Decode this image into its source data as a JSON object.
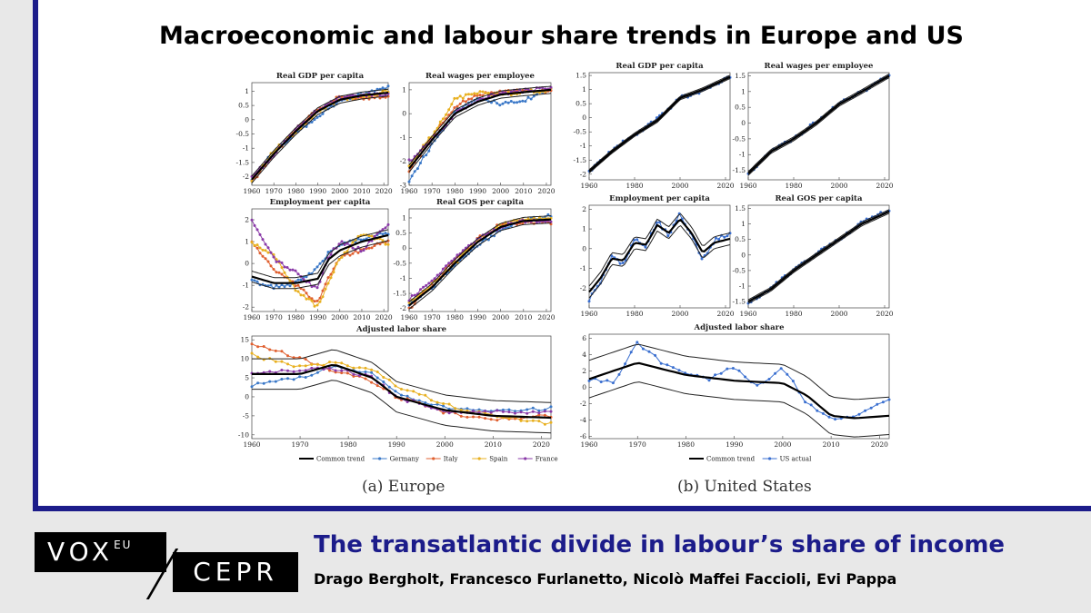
{
  "header": {
    "title": "Macroeconomic and labour share trends in Europe and US"
  },
  "captions": {
    "europe": "(a) Europe",
    "us": "(b) United States"
  },
  "footer": {
    "brand_vox": "VOX",
    "brand_eu": "EU",
    "brand_cepr": "CEPR",
    "title": "The transatlantic divide in labour’s share of income",
    "authors": "Drago Bergholt, Francesco Furlanetto, Nicolò Maffei Faccioli, Evi Pappa"
  },
  "colors": {
    "accent": "#1c1c8a",
    "germany": "#3a78c8",
    "italy": "#e06030",
    "spain": "#e8b020",
    "france": "#8a3aa8",
    "us": "#3a6fd0"
  },
  "chart_data": [
    {
      "id": "eu-gdp",
      "type": "line",
      "title": "Real GDP per capita",
      "xlim": [
        1960,
        2022
      ],
      "ylim": [
        -2.3,
        1.3
      ],
      "xticks": [
        1960,
        1970,
        1980,
        1990,
        2000,
        2010,
        2020
      ],
      "yticks": [
        -2,
        -1.5,
        -1,
        -0.5,
        0,
        0.5,
        1
      ],
      "trend_x": [
        1960,
        1970,
        1980,
        1990,
        2000,
        2010,
        2022
      ],
      "trend": [
        -2.1,
        -1.2,
        -0.4,
        0.3,
        0.7,
        0.85,
        0.95
      ],
      "band": 0.12,
      "series": [
        {
          "name": "Germany",
          "color": "germany",
          "x": [
            1960,
            1970,
            1980,
            1990,
            2000,
            2010,
            2022
          ],
          "y": [
            -2.05,
            -1.15,
            -0.5,
            0.1,
            0.65,
            0.9,
            1.15
          ]
        },
        {
          "name": "Italy",
          "color": "italy",
          "x": [
            1960,
            1970,
            1980,
            1990,
            2000,
            2010,
            2022
          ],
          "y": [
            -2.2,
            -1.2,
            -0.3,
            0.35,
            0.8,
            0.75,
            0.85
          ]
        },
        {
          "name": "Spain",
          "color": "spain",
          "x": [
            1960,
            1970,
            1980,
            1990,
            2000,
            2010,
            2022
          ],
          "y": [
            -2.1,
            -1.1,
            -0.45,
            0.25,
            0.75,
            0.8,
            1.0
          ]
        },
        {
          "name": "France",
          "color": "france",
          "x": [
            1960,
            1970,
            1980,
            1990,
            2000,
            2010,
            2022
          ],
          "y": [
            -2.0,
            -1.25,
            -0.35,
            0.35,
            0.75,
            0.85,
            0.9
          ]
        }
      ]
    },
    {
      "id": "eu-wages",
      "type": "line",
      "title": "Real wages per employee",
      "xlim": [
        1960,
        2022
      ],
      "ylim": [
        -3,
        1.3
      ],
      "xticks": [
        1960,
        1970,
        1980,
        1990,
        2000,
        2010,
        2020
      ],
      "yticks": [
        -3,
        -2,
        -1,
        0,
        1
      ],
      "trend_x": [
        1960,
        1970,
        1980,
        1990,
        2000,
        2010,
        2022
      ],
      "trend": [
        -2.3,
        -1.1,
        0.0,
        0.5,
        0.8,
        0.9,
        1.0
      ],
      "band": 0.15,
      "series": [
        {
          "name": "Germany",
          "color": "germany",
          "x": [
            1960,
            1970,
            1980,
            1990,
            2000,
            2010,
            2022
          ],
          "y": [
            -2.8,
            -1.3,
            0.1,
            0.7,
            0.4,
            0.5,
            1.1
          ]
        },
        {
          "name": "Italy",
          "color": "italy",
          "x": [
            1960,
            1970,
            1980,
            1990,
            2000,
            2010,
            2022
          ],
          "y": [
            -2.4,
            -1.0,
            0.3,
            0.8,
            0.9,
            0.95,
            0.9
          ]
        },
        {
          "name": "Spain",
          "color": "spain",
          "x": [
            1960,
            1970,
            1980,
            1990,
            2000,
            2010,
            2022
          ],
          "y": [
            -2.2,
            -0.9,
            0.6,
            0.9,
            0.8,
            0.9,
            1.0
          ]
        },
        {
          "name": "France",
          "color": "france",
          "x": [
            1960,
            1970,
            1980,
            1990,
            2000,
            2010,
            2022
          ],
          "y": [
            -2.0,
            -1.1,
            0.0,
            0.6,
            0.85,
            0.95,
            1.1
          ]
        }
      ]
    },
    {
      "id": "eu-emp",
      "type": "line",
      "title": "Employment per capita",
      "xlim": [
        1960,
        2022
      ],
      "ylim": [
        -2.2,
        2.5
      ],
      "xticks": [
        1960,
        1970,
        1980,
        1990,
        2000,
        2010,
        2020
      ],
      "yticks": [
        -2,
        -1,
        0,
        1,
        2
      ],
      "trend_x": [
        1960,
        1970,
        1980,
        1990,
        1995,
        2000,
        2010,
        2022
      ],
      "trend": [
        -0.6,
        -0.9,
        -0.9,
        -0.7,
        0.2,
        0.6,
        1.0,
        1.3
      ],
      "band": 0.25,
      "series": [
        {
          "name": "Germany",
          "color": "germany",
          "x": [
            1960,
            1970,
            1980,
            1990,
            1995,
            2000,
            2010,
            2022
          ],
          "y": [
            -0.8,
            -1.1,
            -0.9,
            -0.2,
            0.5,
            0.9,
            1.1,
            1.4
          ]
        },
        {
          "name": "Italy",
          "color": "italy",
          "x": [
            1960,
            1970,
            1980,
            1990,
            1995,
            2000,
            2010,
            2022
          ],
          "y": [
            1.0,
            -0.3,
            -1.0,
            -1.8,
            -0.6,
            0.3,
            0.6,
            1.0
          ]
        },
        {
          "name": "Spain",
          "color": "spain",
          "x": [
            1960,
            1970,
            1980,
            1990,
            1995,
            2000,
            2010,
            2022
          ],
          "y": [
            0.9,
            0.4,
            -1.2,
            -2.0,
            -0.8,
            0.2,
            1.4,
            0.9
          ]
        },
        {
          "name": "France",
          "color": "france",
          "x": [
            1960,
            1970,
            1980,
            1990,
            1995,
            2000,
            2010,
            2022
          ],
          "y": [
            2.0,
            0.2,
            -0.4,
            -1.2,
            0.3,
            1.0,
            0.6,
            1.8
          ]
        }
      ]
    },
    {
      "id": "eu-gos",
      "type": "line",
      "title": "Real GOS per capita",
      "xlim": [
        1960,
        2022
      ],
      "ylim": [
        -2.1,
        1.3
      ],
      "xticks": [
        1960,
        1970,
        1980,
        1990,
        2000,
        2010,
        2020
      ],
      "yticks": [
        -2,
        -1.5,
        -1,
        -0.5,
        0,
        0.5,
        1
      ],
      "trend_x": [
        1960,
        1970,
        1980,
        1990,
        2000,
        2010,
        2022
      ],
      "trend": [
        -1.9,
        -1.3,
        -0.5,
        0.2,
        0.7,
        0.9,
        0.95
      ],
      "band": 0.12,
      "series": [
        {
          "name": "Germany",
          "color": "germany",
          "x": [
            1960,
            1970,
            1980,
            1990,
            2000,
            2010,
            2022
          ],
          "y": [
            -1.9,
            -1.3,
            -0.6,
            0.1,
            0.6,
            0.9,
            1.1
          ]
        },
        {
          "name": "Italy",
          "color": "italy",
          "x": [
            1960,
            1970,
            1980,
            1990,
            2000,
            2010,
            2022
          ],
          "y": [
            -2.0,
            -1.2,
            -0.4,
            0.3,
            0.8,
            0.85,
            0.85
          ]
        },
        {
          "name": "Spain",
          "color": "spain",
          "x": [
            1960,
            1970,
            1980,
            1990,
            2000,
            2010,
            2022
          ],
          "y": [
            -1.8,
            -1.2,
            -0.5,
            0.25,
            0.75,
            0.95,
            1.0
          ]
        },
        {
          "name": "France",
          "color": "france",
          "x": [
            1960,
            1970,
            1980,
            1990,
            2000,
            2010,
            2022
          ],
          "y": [
            -1.7,
            -1.1,
            -0.3,
            0.3,
            0.7,
            0.9,
            0.9
          ]
        }
      ]
    },
    {
      "id": "eu-ls",
      "type": "line",
      "title": "Adjusted labor share",
      "xlim": [
        1960,
        2022
      ],
      "ylim": [
        -11,
        16
      ],
      "xticks": [
        1960,
        1970,
        1980,
        1990,
        2000,
        2010,
        2020
      ],
      "yticks": [
        -10,
        -5,
        0,
        5,
        10,
        15
      ],
      "trend_x": [
        1960,
        1970,
        1977,
        1985,
        1990,
        2000,
        2010,
        2022
      ],
      "trend": [
        6,
        6,
        8.5,
        5,
        0,
        -3.5,
        -5,
        -5.5
      ],
      "band": 4,
      "legend": [
        "Common trend",
        "Germany",
        "Italy",
        "Spain",
        "France"
      ],
      "series": [
        {
          "name": "Germany",
          "color": "germany",
          "x": [
            1960,
            1970,
            1977,
            1985,
            1990,
            2000,
            2010,
            2022
          ],
          "y": [
            3,
            5,
            8,
            6,
            1,
            -3,
            -4,
            -3
          ]
        },
        {
          "name": "Italy",
          "color": "italy",
          "x": [
            1960,
            1970,
            1977,
            1985,
            1990,
            2000,
            2010,
            2022
          ],
          "y": [
            14,
            10,
            7,
            4,
            0,
            -4,
            -6,
            -5
          ]
        },
        {
          "name": "Spain",
          "color": "spain",
          "x": [
            1960,
            1970,
            1977,
            1985,
            1990,
            2000,
            2010,
            2022
          ],
          "y": [
            11,
            8,
            9,
            7,
            3,
            -2,
            -5,
            -7
          ]
        },
        {
          "name": "France",
          "color": "france",
          "x": [
            1960,
            1970,
            1977,
            1985,
            1990,
            2000,
            2010,
            2022
          ],
          "y": [
            6,
            7,
            7.5,
            5,
            0,
            -4,
            -4,
            -4
          ]
        }
      ]
    },
    {
      "id": "us-gdp",
      "type": "line",
      "title": "Real GDP per capita",
      "xlim": [
        1960,
        2022
      ],
      "ylim": [
        -2.2,
        1.6
      ],
      "xticks": [
        1960,
        1980,
        2000,
        2020
      ],
      "yticks": [
        -2,
        -1.5,
        -1,
        -0.5,
        0,
        0.5,
        1,
        1.5
      ],
      "trend_x": [
        1960,
        1970,
        1980,
        1990,
        2000,
        2010,
        2022
      ],
      "trend": [
        -1.9,
        -1.2,
        -0.6,
        -0.1,
        0.7,
        1.0,
        1.45
      ],
      "band": 0.06,
      "series": [
        {
          "name": "US actual",
          "color": "us",
          "x": [
            1960,
            1970,
            1980,
            1990,
            2000,
            2010,
            2022
          ],
          "y": [
            -1.9,
            -1.15,
            -0.6,
            -0.05,
            0.7,
            0.95,
            1.45
          ]
        }
      ]
    },
    {
      "id": "us-wages",
      "type": "line",
      "title": "Real wages per employee",
      "xlim": [
        1960,
        2022
      ],
      "ylim": [
        -1.8,
        1.6
      ],
      "xticks": [
        1960,
        1980,
        2000,
        2020
      ],
      "yticks": [
        -1.5,
        -1,
        -0.5,
        0,
        0.5,
        1,
        1.5
      ],
      "trend_x": [
        1960,
        1970,
        1980,
        1990,
        2000,
        2010,
        2022
      ],
      "trend": [
        -1.6,
        -0.9,
        -0.5,
        0.0,
        0.6,
        1.0,
        1.5
      ],
      "band": 0.06,
      "series": [
        {
          "name": "US actual",
          "color": "us",
          "x": [
            1960,
            1970,
            1980,
            1990,
            2000,
            2010,
            2022
          ],
          "y": [
            -1.6,
            -0.9,
            -0.5,
            0.05,
            0.6,
            1.0,
            1.5
          ]
        }
      ]
    },
    {
      "id": "us-emp",
      "type": "line",
      "title": "Employment per capita",
      "xlim": [
        1960,
        2022
      ],
      "ylim": [
        -3,
        2.2
      ],
      "xticks": [
        1960,
        1980,
        2000,
        2020
      ],
      "yticks": [
        -2,
        -1,
        0,
        1,
        2
      ],
      "trend_x": [
        1960,
        1965,
        1970,
        1975,
        1980,
        1985,
        1990,
        1995,
        2000,
        2005,
        2010,
        2015,
        2022
      ],
      "trend": [
        -2.2,
        -1.5,
        -0.5,
        -0.6,
        0.3,
        0.2,
        1.2,
        0.8,
        1.5,
        0.8,
        -0.2,
        0.3,
        0.5
      ],
      "band": 0.3,
      "series": [
        {
          "name": "US actual",
          "color": "us",
          "x": [
            1960,
            1965,
            1970,
            1975,
            1980,
            1985,
            1990,
            1995,
            2000,
            2005,
            2010,
            2015,
            2022
          ],
          "y": [
            -2.6,
            -1.7,
            -0.4,
            -0.8,
            0.5,
            0.1,
            1.4,
            0.7,
            1.8,
            0.7,
            -0.6,
            0.4,
            0.8
          ]
        }
      ]
    },
    {
      "id": "us-gos",
      "type": "line",
      "title": "Real GOS per capita",
      "xlim": [
        1960,
        2022
      ],
      "ylim": [
        -1.7,
        1.6
      ],
      "xticks": [
        1960,
        1980,
        2000,
        2020
      ],
      "yticks": [
        -1.5,
        -1,
        -0.5,
        0,
        0.5,
        1,
        1.5
      ],
      "trend_x": [
        1960,
        1970,
        1980,
        1990,
        2000,
        2010,
        2022
      ],
      "trend": [
        -1.5,
        -1.1,
        -0.5,
        0.0,
        0.5,
        1.0,
        1.4
      ],
      "band": 0.06,
      "series": [
        {
          "name": "US actual",
          "color": "us",
          "x": [
            1960,
            1970,
            1980,
            1990,
            2000,
            2010,
            2022
          ],
          "y": [
            -1.55,
            -1.05,
            -0.5,
            0.05,
            0.5,
            1.05,
            1.45
          ]
        }
      ]
    },
    {
      "id": "us-ls",
      "type": "line",
      "title": "Adjusted labor share",
      "xlim": [
        1960,
        2022
      ],
      "ylim": [
        -6.3,
        6.5
      ],
      "xticks": [
        1960,
        1970,
        1980,
        1990,
        2000,
        2010,
        2020
      ],
      "yticks": [
        -6,
        -4,
        -2,
        0,
        2,
        4,
        6
      ],
      "trend_x": [
        1960,
        1970,
        1980,
        1990,
        2000,
        2005,
        2010,
        2015,
        2022
      ],
      "trend": [
        1,
        3,
        1.5,
        0.8,
        0.5,
        -1,
        -3.5,
        -3.8,
        -3.5
      ],
      "band": 2.3,
      "legend": [
        "Common trend",
        "US actual"
      ],
      "series": [
        {
          "name": "US actual",
          "color": "us",
          "x": [
            1960,
            1965,
            1970,
            1975,
            1980,
            1985,
            1990,
            1995,
            2000,
            2005,
            2010,
            2015,
            2022
          ],
          "y": [
            1,
            0.5,
            5.5,
            3,
            1.5,
            1,
            2.5,
            0,
            2.5,
            -2,
            -4,
            -3.5,
            -1.5
          ]
        }
      ]
    }
  ]
}
